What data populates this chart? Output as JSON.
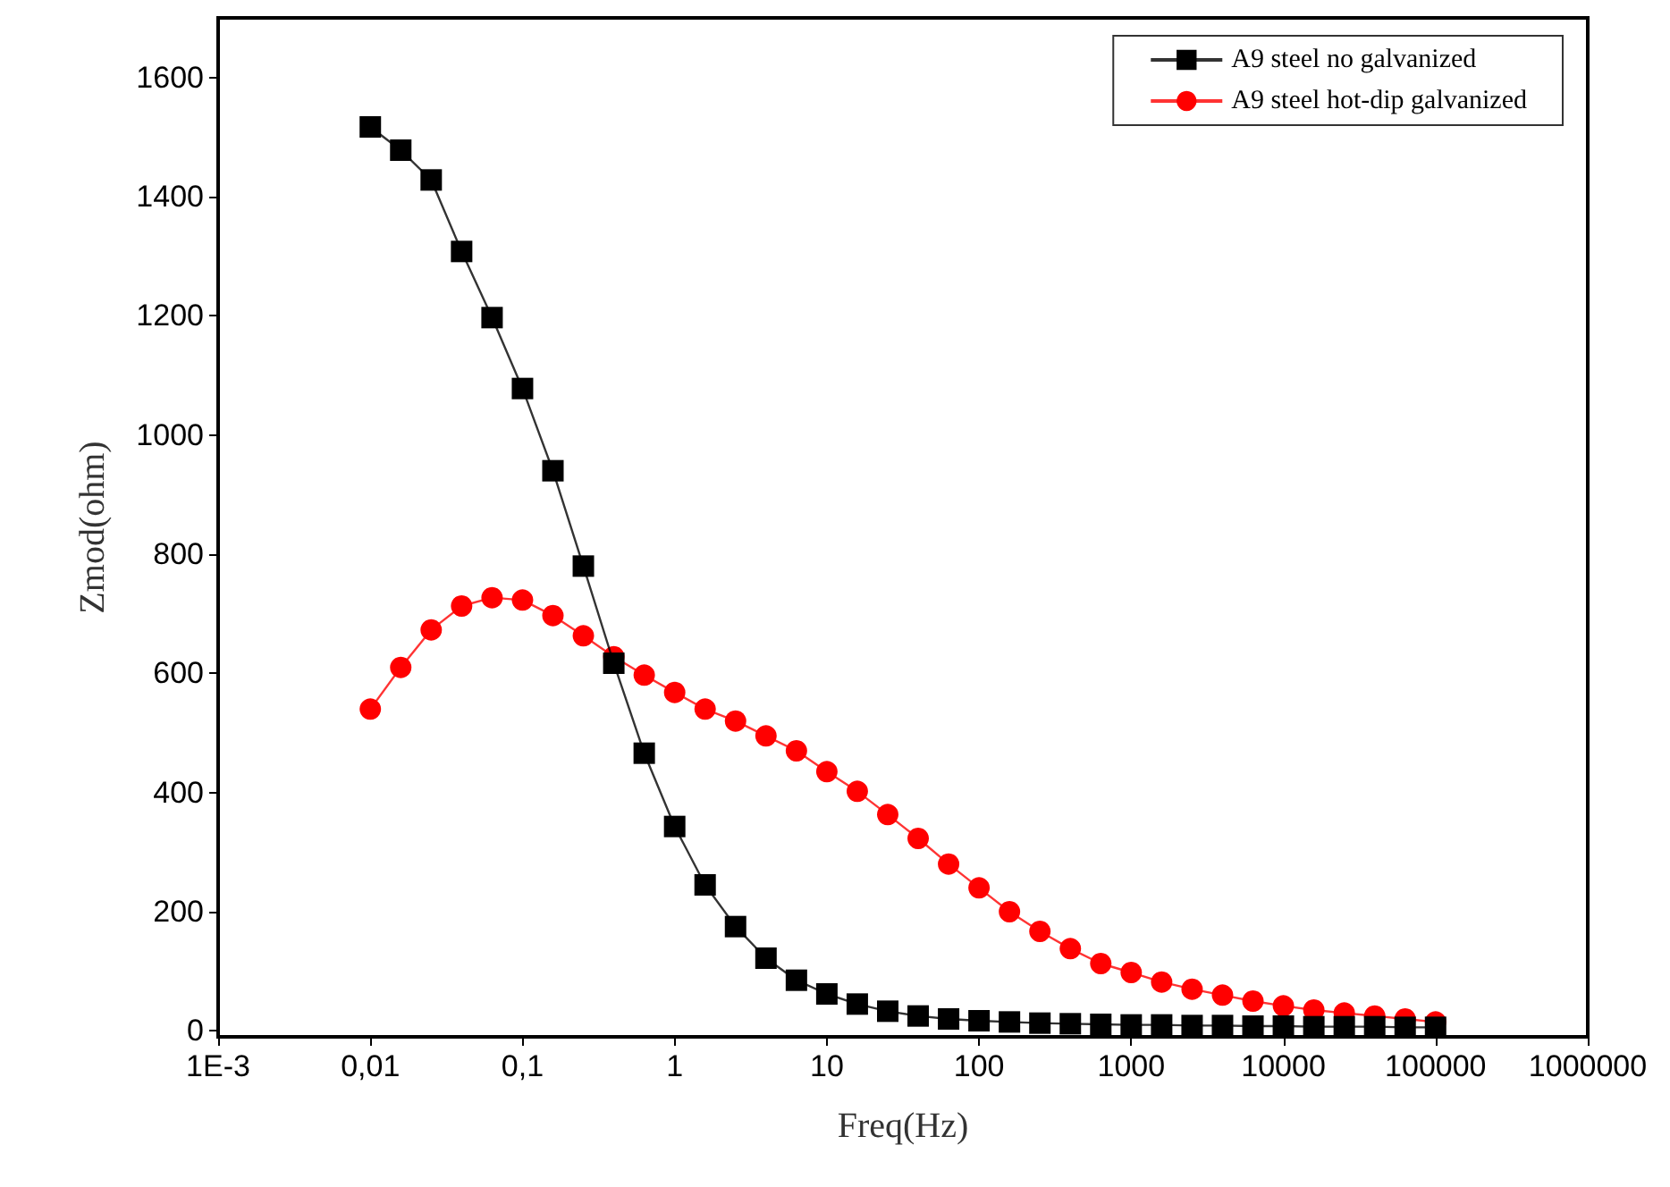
{
  "chart_data": {
    "type": "line",
    "xlabel": "Freq(Hz)",
    "ylabel": "Zmod(ohm)",
    "log": "x",
    "x": [
      0.01,
      0.01585,
      0.02512,
      0.03981,
      0.0631,
      0.1,
      0.1585,
      0.2512,
      0.3981,
      0.631,
      1,
      1.585,
      2.512,
      3.981,
      6.31,
      10,
      15.85,
      25.12,
      39.81,
      63.1,
      100,
      158.5,
      251.2,
      398.1,
      631,
      1000,
      1585,
      2512,
      3981,
      6310,
      10000,
      15850,
      25120,
      39810,
      63100,
      100000
    ],
    "series": [
      {
        "name": "A9 steel no galvanized",
        "color": "#000000",
        "marker": "square",
        "values": [
          1517,
          1478,
          1428,
          1308,
          1197,
          1078,
          940,
          780,
          617,
          466,
          343,
          245,
          175,
          122,
          85,
          62,
          45,
          33,
          25,
          20,
          17,
          15,
          13,
          12,
          11,
          10,
          10,
          9,
          9,
          8,
          8,
          7,
          7,
          7,
          6,
          6
        ]
      },
      {
        "name": "A9 steel hot-dip galvanized",
        "color": "#ff0000",
        "marker": "circle",
        "values": [
          540,
          610,
          673,
          713,
          727,
          723,
          697,
          663,
          628,
          597,
          568,
          540,
          520,
          495,
          470,
          435,
          402,
          363,
          323,
          280,
          240,
          200,
          167,
          138,
          113,
          98,
          82,
          70,
          60,
          50,
          42,
          35,
          30,
          25,
          20,
          15
        ]
      }
    ],
    "xlim": [
      0.001,
      1000000
    ],
    "xticks": [
      {
        "value": 0.001,
        "label": "1E-3"
      },
      {
        "value": 0.01,
        "label": "0,01"
      },
      {
        "value": 0.1,
        "label": "0,1"
      },
      1,
      10,
      100,
      1000,
      10000,
      100000,
      1000000
    ],
    "ylim": [
      -10,
      1700
    ],
    "yticks": [
      0,
      200,
      400,
      600,
      800,
      1000,
      1200,
      1400,
      1600
    ],
    "grid": false,
    "legend": "top right",
    "line_style": "solid"
  }
}
